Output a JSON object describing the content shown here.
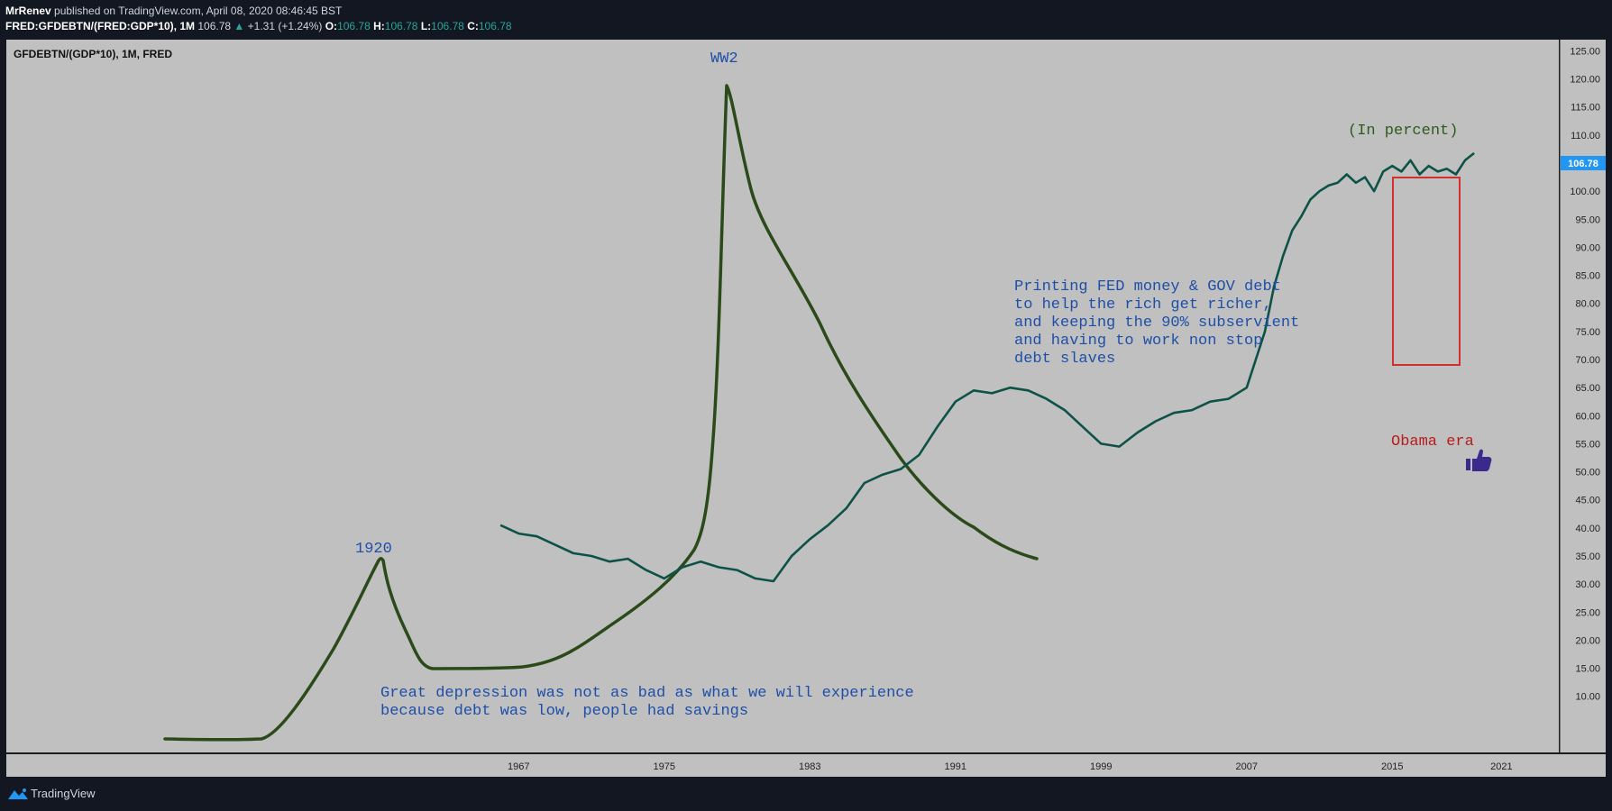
{
  "header": {
    "author": "MrRenev",
    "published_text": "published on TradingView.com, April 08, 2020 08:46:45 BST",
    "symbol": "FRED:GFDEBTN/(FRED:GDP*10), 1M",
    "last": "106.78",
    "arrow": "▲",
    "change": "+1.31 (+1.24%)",
    "o_label": "O:",
    "o_val": "106.78",
    "h_label": "H:",
    "h_val": "106.78",
    "l_label": "L:",
    "l_val": "106.78",
    "c_label": "C:",
    "c_val": "106.78"
  },
  "legend_title": "GFDEBTN/(GDP*10), 1M, FRED",
  "price_tag": "106.78",
  "footer": {
    "brand": "TradingView"
  },
  "colors": {
    "plot_bg": "#c0c0c0",
    "line": "#0d5246",
    "drawing": "#2a4a1a",
    "annotation_blue": "#1e4fa8",
    "annotation_red": "#b71c1c",
    "annotation_green": "#2e5a1c",
    "box": "#d32f2f",
    "price_tag_bg": "#2196f3",
    "thumb": "#3b2a8c"
  },
  "chart_data": {
    "type": "line",
    "title": "GFDEBTN/(GDP*10), 1M, FRED",
    "ylim": [
      0,
      127
    ],
    "xlim": [
      1938.85,
      2024.15
    ],
    "x_ticks": [
      "1967",
      "1975",
      "1983",
      "1991",
      "1999",
      "2007",
      "2015",
      "2021"
    ],
    "y_ticks": [
      "10.00",
      "15.00",
      "20.00",
      "25.00",
      "30.00",
      "35.00",
      "40.00",
      "45.00",
      "50.00",
      "55.00",
      "60.00",
      "65.00",
      "70.00",
      "75.00",
      "80.00",
      "85.00",
      "90.00",
      "95.00",
      "100.00",
      "105.00",
      "110.00",
      "115.00",
      "120.00",
      "125.00"
    ],
    "series": [
      {
        "x": [
          1966.0,
          1967.0,
          1968.0,
          1969.0,
          1970.0,
          1971.0,
          1972.0,
          1973.0,
          1974.0,
          1975.0,
          1976.0,
          1977.0,
          1978.0,
          1979.0,
          1980.0,
          1981.0,
          1982.0,
          1983.0,
          1984.0,
          1985.0,
          1986.0,
          1987.0,
          1988.0,
          1989.0,
          1990.0,
          1991.0,
          1992.0,
          1993.0,
          1994.0,
          1995.0,
          1996.0,
          1997.0,
          1998.0,
          1999.0,
          2000.0,
          2001.0,
          2002.0,
          2003.0,
          2004.0,
          2005.0,
          2006.0,
          2007.0,
          2008.0,
          2008.5,
          2009.0,
          2009.5,
          2010.0,
          2010.5,
          2011.0,
          2011.5,
          2012.0,
          2012.5,
          2013.0,
          2013.5,
          2014.0,
          2014.5,
          2015.0,
          2015.5,
          2016.0,
          2016.5,
          2017.0,
          2017.5,
          2018.0,
          2018.5,
          2019.0,
          2019.5
        ],
        "y": [
          40.5,
          39.0,
          38.5,
          37.0,
          35.5,
          35.0,
          34.0,
          34.5,
          32.5,
          31.0,
          33.0,
          34.0,
          33.0,
          32.5,
          31.0,
          30.5,
          35.0,
          38.0,
          40.5,
          43.5,
          48.0,
          49.5,
          50.5,
          53.0,
          58.0,
          62.5,
          64.5,
          64.0,
          65.0,
          64.5,
          63.0,
          61.0,
          58.0,
          55.0,
          54.5,
          57.0,
          59.0,
          60.5,
          61.0,
          62.5,
          63.0,
          65.0,
          75.0,
          83.0,
          88.5,
          93.0,
          95.5,
          98.5,
          100.0,
          101.0,
          101.5,
          103.0,
          101.5,
          102.5,
          100.0,
          103.5,
          104.5,
          103.5,
          105.5,
          103.0,
          104.5,
          103.5,
          104.0,
          103.0,
          105.5,
          106.78
        ]
      }
    ],
    "annotations": {
      "ww2": "WW2",
      "y1920": "1920",
      "depression_1": "Great depression was not as bad as what we will experience",
      "depression_2": "because debt was low, people had savings",
      "printing_1": "Printing FED money & GOV debt",
      "printing_2": "to help the rich get richer,",
      "printing_3": "and keeping the 90% subservient",
      "printing_4": "and having to work non stop",
      "printing_5": "debt slaves",
      "in_percent": "(In percent)",
      "obama": "Obama era"
    }
  }
}
